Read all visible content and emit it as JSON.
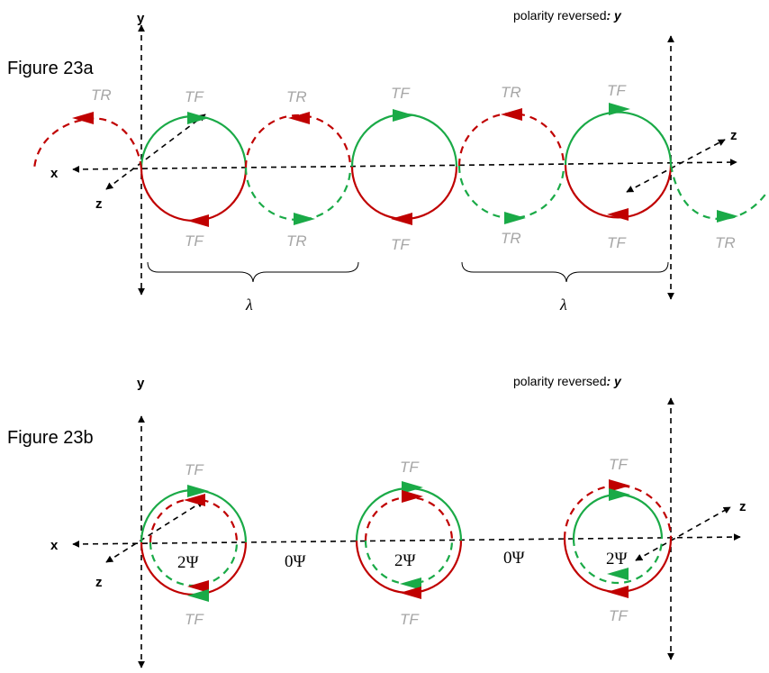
{
  "figure_a": {
    "title": "Figure 23a",
    "y_axis_label": "y",
    "x_axis_label": "x",
    "z_axis_label_left": "z",
    "z_axis_label_right": "z",
    "polarity_note": "polarity reversed",
    "polarity_note_y": ": y",
    "wavelength_symbol_1": "λ",
    "wavelength_symbol_2": "λ",
    "top_labels": [
      "TR",
      "TF",
      "TR",
      "TF",
      "TR",
      "TF"
    ],
    "bottom_labels": [
      "TF",
      "TR",
      "TF",
      "TR",
      "TF",
      "TR"
    ]
  },
  "figure_b": {
    "title": "Figure 23b",
    "y_axis_label": "y",
    "x_axis_label": "x",
    "z_axis_label_left": "z",
    "z_axis_label_right": "z",
    "polarity_note": "polarity reversed",
    "polarity_note_y": ": y",
    "top_labels": [
      "TF",
      "TF",
      "TF"
    ],
    "bottom_labels": [
      "TF",
      "TF",
      "TF"
    ],
    "phase_inside": [
      "2Ψ",
      "2Ψ",
      "2Ψ"
    ],
    "phase_between": [
      "0Ψ",
      "0Ψ"
    ]
  },
  "colors": {
    "green": "#1aaa47",
    "red": "#c00000",
    "gray_label": "#a6a6a6",
    "axis": "#000000"
  }
}
